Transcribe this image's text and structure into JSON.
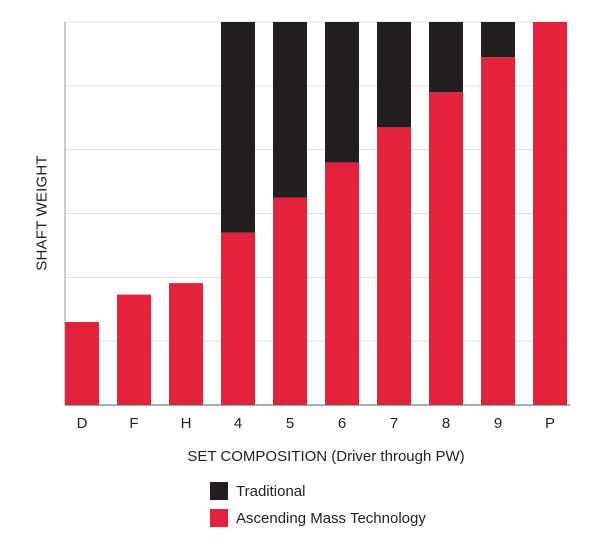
{
  "chart_data": {
    "type": "bar",
    "stacked": true,
    "categories": [
      "D",
      "F",
      "H",
      "4",
      "5",
      "6",
      "7",
      "8",
      "9",
      "P"
    ],
    "series": [
      {
        "name": "Ascending Mass Technology",
        "values": [
          1.3,
          1.73,
          1.91,
          2.7,
          3.25,
          3.8,
          4.35,
          4.9,
          5.45,
          6.0
        ],
        "color": "#e2233b"
      },
      {
        "name": "Traditional",
        "values": [
          0,
          0,
          0,
          3.3,
          2.75,
          2.2,
          1.65,
          1.1,
          0.55,
          0
        ],
        "color": "#231f20"
      }
    ],
    "title": "",
    "xlabel": "SET COMPOSITION (Driver through PW)",
    "ylabel": "SHAFT WEIGHT",
    "ylim": [
      0,
      6
    ],
    "gridlines": true,
    "legend": [
      {
        "label": "Traditional",
        "color": "#231f20"
      },
      {
        "label": "Ascending Mass Technology",
        "color": "#e2233b"
      }
    ],
    "legend_position": "bottom"
  }
}
